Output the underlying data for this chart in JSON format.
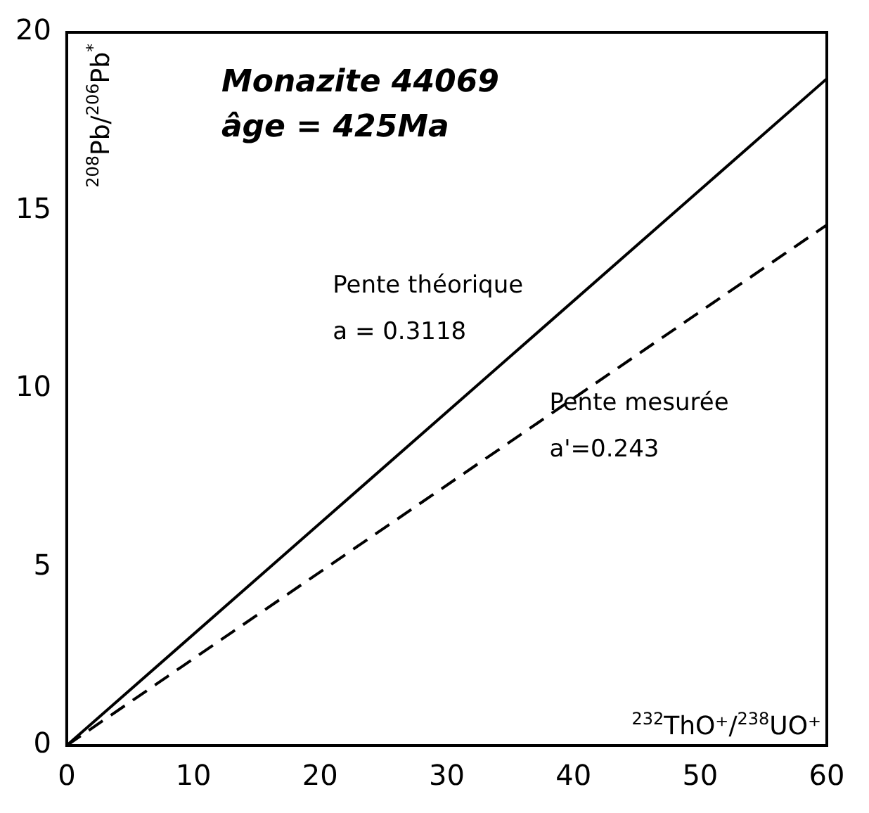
{
  "chart_data": {
    "type": "line",
    "title": "Monazite 44069",
    "subtitle": "âge = 425Ma",
    "xlabel": "$^{232}$ThO⁺/$^{238}$UO⁺",
    "ylabel": "$^{208}$Pb/$^{206}$Pb$^{*}$",
    "x": [
      0,
      60
    ],
    "series": [
      {
        "color": "#000000",
        "values": [
          0,
          18.7
        ],
        "line_style": "solid"
      },
      {
        "color": "#000000",
        "values": [
          0,
          14.6
        ],
        "line_style": "dashed"
      }
    ],
    "annotations": [
      "Pente théorique",
      "a = 0.3118",
      "Pente mesurée",
      "a'=0.243"
    ],
    "xlim": [
      0,
      60
    ],
    "xticks": [
      0,
      10,
      20,
      30,
      40,
      50,
      60
    ],
    "ylim": [
      0,
      20
    ],
    "yticks": [
      0,
      5,
      10,
      15,
      20
    ],
    "grid": false,
    "legend": false,
    "marker": "none"
  }
}
